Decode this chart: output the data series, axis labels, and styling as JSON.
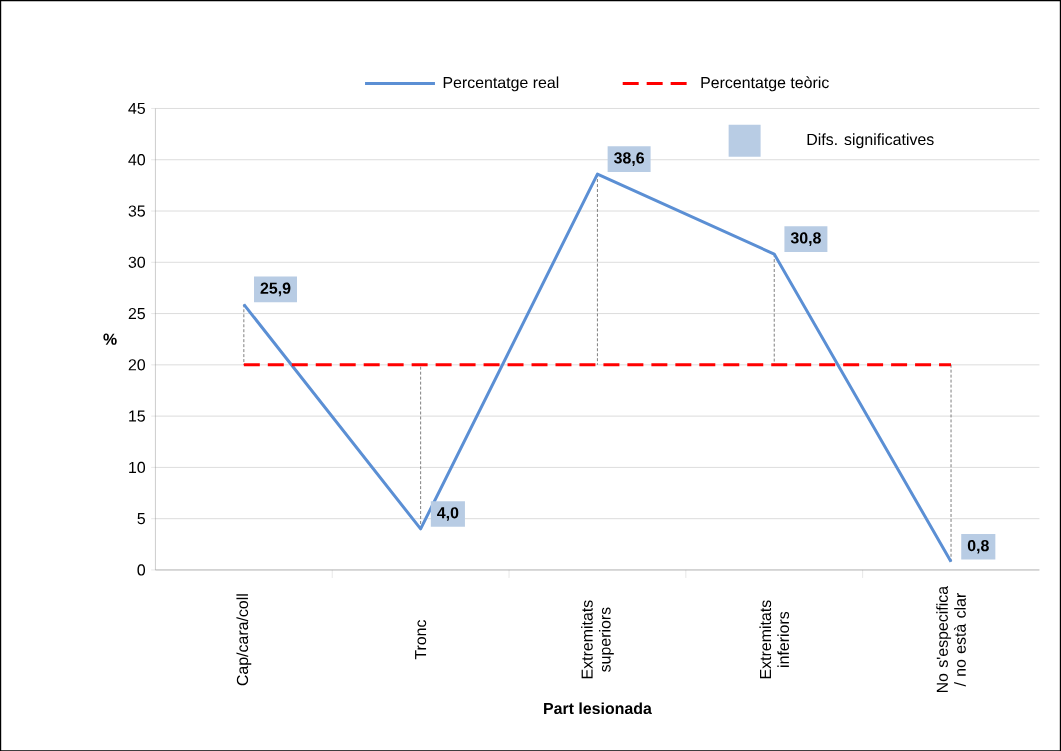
{
  "chart_data": {
    "type": "line",
    "xlabel": "Part lesionada",
    "ylabel": "%",
    "categories": [
      "Cap/cara/coll",
      "Tronc",
      "Extremitats superiors",
      "Extremitats inferiors",
      "No s'especifica / no està clar"
    ],
    "series": [
      {
        "name": "Percentatge real",
        "color": "#5b8fd4",
        "values": [
          25.9,
          4.0,
          38.6,
          30.8,
          0.8
        ],
        "value_labels": [
          "25,9",
          "4,0",
          "38,6",
          "30,8",
          "0,8"
        ]
      },
      {
        "name": "Percentatge teòric",
        "color": "#ff0000",
        "values": [
          20,
          20,
          20,
          20,
          20
        ],
        "line_style": "dashed"
      }
    ],
    "ylim": [
      0,
      45
    ],
    "yticks": [
      0,
      5,
      10,
      15,
      20,
      25,
      30,
      35,
      40,
      45
    ],
    "grid": "y",
    "legend": "top",
    "marker": "none",
    "annotations": [
      "Difs. significatives"
    ]
  }
}
